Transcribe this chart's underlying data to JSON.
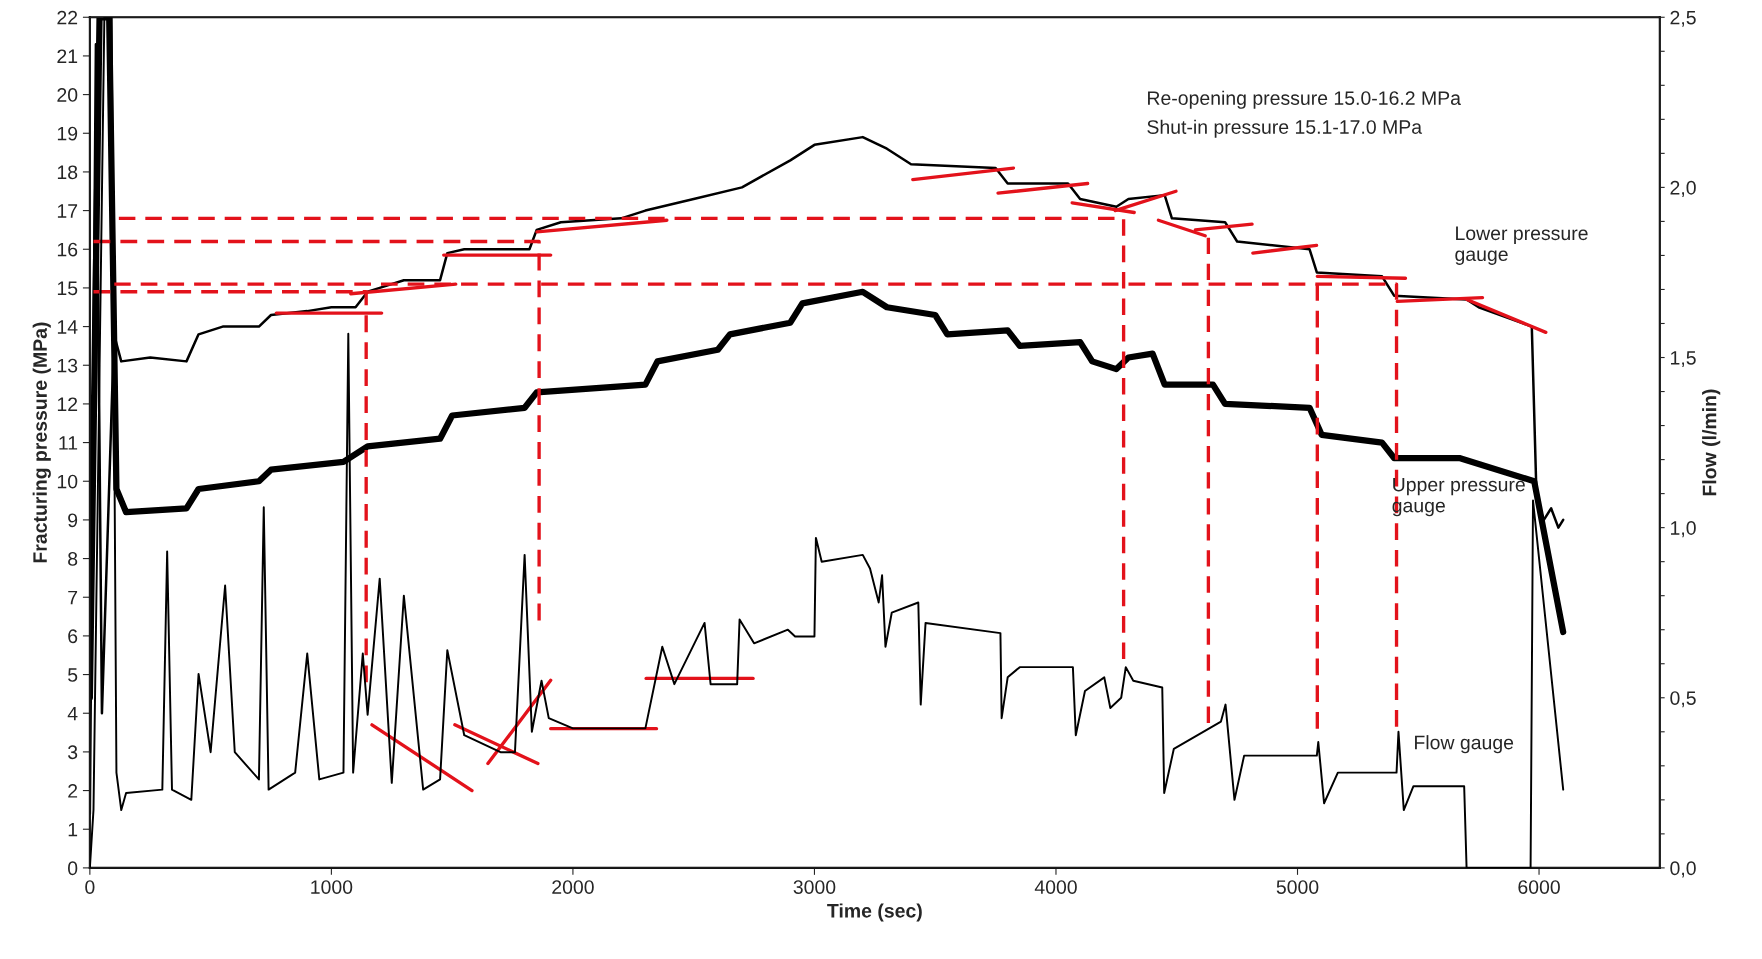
{
  "chart_data": {
    "type": "line",
    "xlabel": "Time (sec)",
    "ylabel": "Fracturing pressure (MPa)",
    "y2label": "Flow (l/min)",
    "xlim": [
      0,
      6500
    ],
    "xticks": [
      0,
      1000,
      2000,
      3000,
      4000,
      5000,
      6000
    ],
    "ylim": [
      0,
      22
    ],
    "yticks": [
      0,
      1,
      2,
      3,
      4,
      5,
      6,
      7,
      8,
      9,
      10,
      11,
      12,
      13,
      14,
      15,
      16,
      17,
      18,
      19,
      20,
      21,
      22
    ],
    "y2lim": [
      0,
      2.5
    ],
    "y2ticks": [
      {
        "value": 0,
        "label": "0,0"
      },
      {
        "value": 0.1,
        "label": null
      },
      {
        "value": 0.2,
        "label": null
      },
      {
        "value": 0.3,
        "label": null
      },
      {
        "value": 0.4,
        "label": null
      },
      {
        "value": 0.5,
        "label": "0,5"
      },
      {
        "value": 0.6,
        "label": null
      },
      {
        "value": 0.7,
        "label": null
      },
      {
        "value": 0.8,
        "label": null
      },
      {
        "value": 0.9,
        "label": null
      },
      {
        "value": 1.0,
        "label": "1,0"
      },
      {
        "value": 1.1,
        "label": null
      },
      {
        "value": 1.2,
        "label": null
      },
      {
        "value": 1.3,
        "label": null
      },
      {
        "value": 1.4,
        "label": null
      },
      {
        "value": 1.5,
        "label": "1,5"
      },
      {
        "value": 1.6,
        "label": null
      },
      {
        "value": 1.7,
        "label": null
      },
      {
        "value": 1.8,
        "label": null
      },
      {
        "value": 1.9,
        "label": null
      },
      {
        "value": 2.0,
        "label": "2,0"
      },
      {
        "value": 2.1,
        "label": null
      },
      {
        "value": 2.2,
        "label": null
      },
      {
        "value": 2.3,
        "label": null
      },
      {
        "value": 2.4,
        "label": null
      },
      {
        "value": 2.5,
        "label": "2,5"
      }
    ],
    "grid": false,
    "legend": false,
    "annotations": [
      "Re-opening pressure 15.0-16.2 MPa",
      "Shut-in pressure 15.1-17.0 MPa"
    ],
    "series": [
      {
        "name": "Lower pressure gauge",
        "color": "#000000",
        "x": [
          0,
          25,
          50,
          100,
          130,
          250,
          400,
          450,
          550,
          700,
          750,
          900,
          1000,
          1100,
          1150,
          1200,
          1300,
          1450,
          1480,
          1550,
          1820,
          1850,
          1950,
          2200,
          2300,
          2500,
          2700,
          2900,
          3000,
          3200,
          3300,
          3400,
          3750,
          3800,
          4050,
          4100,
          4250,
          4300,
          4450,
          4480,
          4700,
          4750,
          5050,
          5080,
          5350,
          5400,
          5700,
          5750,
          5970,
          5990,
          6020,
          6050,
          6080,
          6100
        ],
        "values": [
          1.4,
          21.3,
          4.0,
          13.8,
          13.1,
          13.2,
          13.1,
          13.8,
          14.0,
          14.0,
          14.3,
          14.4,
          14.5,
          14.5,
          14.9,
          15.0,
          15.2,
          15.2,
          15.9,
          16.0,
          16.0,
          16.5,
          16.7,
          16.8,
          17.0,
          17.3,
          17.6,
          18.3,
          18.7,
          18.9,
          18.6,
          18.2,
          18.1,
          17.7,
          17.7,
          17.3,
          17.1,
          17.3,
          17.4,
          16.8,
          16.7,
          16.2,
          16.0,
          15.4,
          15.3,
          14.8,
          14.7,
          14.5,
          14.0,
          9.5,
          9.0,
          9.3,
          8.8,
          9.0
        ]
      },
      {
        "name": "Upper pressure gauge",
        "color": "#000000",
        "x": [
          0,
          40,
          80,
          110,
          150,
          400,
          450,
          700,
          750,
          1050,
          1150,
          1450,
          1500,
          1800,
          1850,
          2300,
          2350,
          2600,
          2650,
          2900,
          2950,
          3200,
          3300,
          3500,
          3550,
          3800,
          3850,
          4100,
          4150,
          4250,
          4300,
          4400,
          4450,
          4650,
          4700,
          5050,
          5100,
          5350,
          5400,
          5670,
          5980,
          6100
        ],
        "values": [
          4.4,
          22,
          22,
          9.8,
          9.2,
          9.3,
          9.8,
          10.0,
          10.3,
          10.5,
          10.9,
          11.1,
          11.7,
          11.9,
          12.3,
          12.5,
          13.1,
          13.4,
          13.8,
          14.1,
          14.6,
          14.9,
          14.5,
          14.3,
          13.8,
          13.9,
          13.5,
          13.6,
          13.1,
          12.9,
          13.2,
          13.3,
          12.5,
          12.5,
          12.0,
          11.9,
          11.2,
          11.0,
          10.6,
          10.6,
          10.0,
          6.1
        ]
      },
      {
        "name": "Flow gauge",
        "axis": "y2",
        "color": "#000000",
        "x": [
          0,
          15,
          60,
          90,
          110,
          130,
          150,
          300,
          320,
          340,
          420,
          450,
          500,
          560,
          600,
          700,
          720,
          740,
          850,
          900,
          950,
          1050,
          1070,
          1090,
          1130,
          1150,
          1200,
          1250,
          1300,
          1380,
          1450,
          1480,
          1550,
          1700,
          1760,
          1800,
          1830,
          1870,
          1900,
          2000,
          2300,
          2370,
          2420,
          2545,
          2570,
          2680,
          2690,
          2750,
          2890,
          2920,
          3000,
          3006,
          3030,
          3200,
          3230,
          3266,
          3280,
          3294,
          3320,
          3430,
          3440,
          3460,
          3770,
          3775,
          3800,
          3850,
          4070,
          4082,
          4120,
          4200,
          4225,
          4270,
          4289,
          4320,
          4440,
          4448,
          4488,
          4683,
          4702,
          4739,
          4779,
          5080,
          5086,
          5110,
          5167,
          5410,
          5418,
          5440,
          5480,
          5690,
          5700,
          5965,
          5975,
          6100
        ],
        "values": [
          0,
          0.17,
          2.5,
          2.5,
          0.28,
          0.17,
          0.22,
          0.23,
          0.93,
          0.23,
          0.2,
          0.57,
          0.34,
          0.83,
          0.34,
          0.26,
          1.06,
          0.23,
          0.28,
          0.63,
          0.26,
          0.28,
          1.57,
          0.28,
          0.63,
          0.45,
          0.85,
          0.25,
          0.8,
          0.23,
          0.26,
          0.64,
          0.39,
          0.34,
          0.34,
          0.92,
          0.4,
          0.55,
          0.44,
          0.41,
          0.41,
          0.65,
          0.54,
          0.72,
          0.54,
          0.54,
          0.73,
          0.66,
          0.7,
          0.68,
          0.68,
          0.97,
          0.9,
          0.92,
          0.88,
          0.78,
          0.86,
          0.65,
          0.75,
          0.78,
          0.48,
          0.72,
          0.69,
          0.44,
          0.56,
          0.59,
          0.59,
          0.39,
          0.52,
          0.56,
          0.47,
          0.5,
          0.59,
          0.55,
          0.53,
          0.22,
          0.35,
          0.43,
          0.48,
          0.2,
          0.33,
          0.33,
          0.37,
          0.19,
          0.28,
          0.28,
          0.4,
          0.17,
          0.24,
          0.24,
          0,
          0,
          1.08,
          0.23
        ]
      },
      {
        "color": "#e3121b",
        "line_style": "dashed",
        "x": [
          120,
          4280,
          4280
        ],
        "values": [
          16.8,
          16.8,
          5.4
        ]
      },
      {
        "color": "#e3121b",
        "line_style": "dashed",
        "x": [
          15,
          1860,
          1860
        ],
        "values": [
          16.2,
          16.2,
          6.4
        ]
      },
      {
        "color": "#e3121b",
        "line_style": "dashed",
        "x": [
          100,
          5410,
          5410
        ],
        "values": [
          15.1,
          15.1,
          3.65
        ]
      },
      {
        "color": "#e3121b",
        "line_style": "dashed",
        "x": [
          15,
          1144,
          1144
        ],
        "values": [
          14.9,
          14.9,
          4.8
        ]
      },
      {
        "color": "#e3121b",
        "line_style": "dashed",
        "x": [
          4631,
          4631
        ],
        "values": [
          16.3,
          3.75
        ]
      },
      {
        "color": "#e3121b",
        "line_style": "dashed",
        "x": [
          5082,
          5082
        ],
        "values": [
          15.1,
          3.6
        ]
      },
      {
        "color": "#e3121b",
        "x": [
          772,
          1208
        ],
        "values": [
          14.35,
          14.35
        ]
      },
      {
        "color": "#e3121b",
        "x": [
          1080,
          1515
        ],
        "values": [
          14.85,
          15.1
        ]
      },
      {
        "color": "#e3121b",
        "x": [
          1465,
          1908
        ],
        "values": [
          15.85,
          15.85
        ]
      },
      {
        "color": "#e3121b",
        "x": [
          1851,
          2389
        ],
        "values": [
          16.45,
          16.75
        ]
      },
      {
        "color": "#e3121b",
        "x": [
          3407,
          3824
        ],
        "values": [
          17.8,
          18.1
        ]
      },
      {
        "color": "#e3121b",
        "x": [
          3760,
          4131
        ],
        "values": [
          17.45,
          17.7
        ]
      },
      {
        "color": "#e3121b",
        "x": [
          4067,
          4324
        ],
        "values": [
          17.2,
          16.95
        ]
      },
      {
        "color": "#e3121b",
        "x": [
          4245,
          4497
        ],
        "values": [
          17.0,
          17.5
        ]
      },
      {
        "color": "#e3121b",
        "x": [
          4424,
          4618
        ],
        "values": [
          16.75,
          16.35
        ]
      },
      {
        "color": "#e3121b",
        "x": [
          4577,
          4812
        ],
        "values": [
          16.5,
          16.65
        ]
      },
      {
        "color": "#e3121b",
        "x": [
          4815,
          5079
        ],
        "values": [
          15.9,
          16.1
        ]
      },
      {
        "color": "#e3121b",
        "x": [
          5082,
          5447
        ],
        "values": [
          15.3,
          15.25
        ]
      },
      {
        "color": "#e3121b",
        "x": [
          5413,
          5766
        ],
        "values": [
          14.65,
          14.75
        ]
      },
      {
        "color": "#e3121b",
        "x": [
          5701,
          6028
        ],
        "values": [
          14.7,
          13.85
        ]
      },
      {
        "color": "#e3121b",
        "x": [
          1168,
          1582
        ],
        "values": [
          3.7,
          2.0
        ]
      },
      {
        "color": "#e3121b",
        "x": [
          1511,
          1855
        ],
        "values": [
          3.7,
          2.7
        ]
      },
      {
        "color": "#e3121b",
        "x": [
          1648,
          1908
        ],
        "values": [
          2.7,
          4.85
        ]
      },
      {
        "color": "#e3121b",
        "x": [
          1908,
          2346
        ],
        "values": [
          3.6,
          3.6
        ]
      },
      {
        "color": "#e3121b",
        "x": [
          2303,
          2746
        ],
        "values": [
          4.9,
          4.9
        ]
      }
    ]
  }
}
